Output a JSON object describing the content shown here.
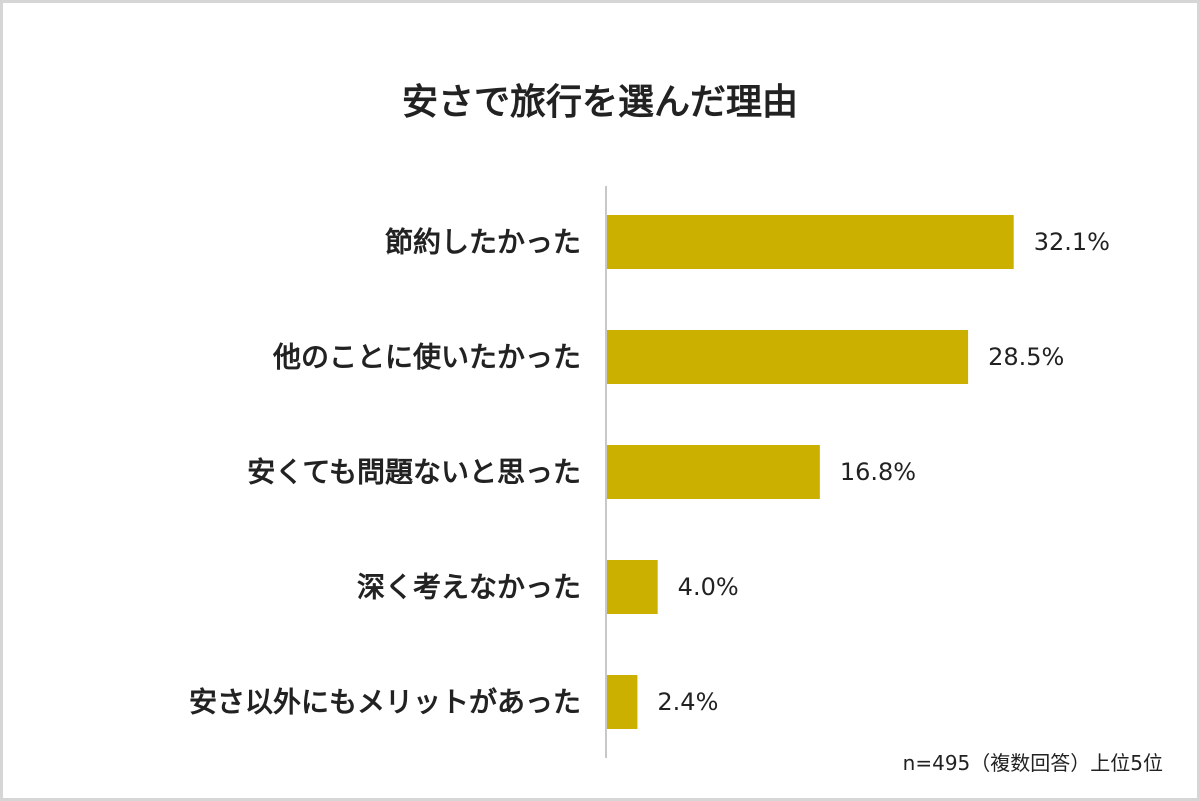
{
  "chart_data": {
    "type": "bar",
    "orientation": "horizontal",
    "title": "安さで旅行を選んだ理由",
    "categories": [
      "節約したかった",
      "他のことに使いたかった",
      "安くても問題ないと思った",
      "深く考えなかった",
      "安さ以外にもメリットがあった"
    ],
    "values": [
      32.1,
      28.5,
      16.8,
      4.0,
      2.4
    ],
    "value_labels": [
      "32.1%",
      "28.5%",
      "16.8%",
      "4.0%",
      "2.4%"
    ],
    "unit": "%",
    "bar_color": "#ccb000",
    "grid": false,
    "legend": "none",
    "note": "n=495（複数回答）上位5位"
  }
}
